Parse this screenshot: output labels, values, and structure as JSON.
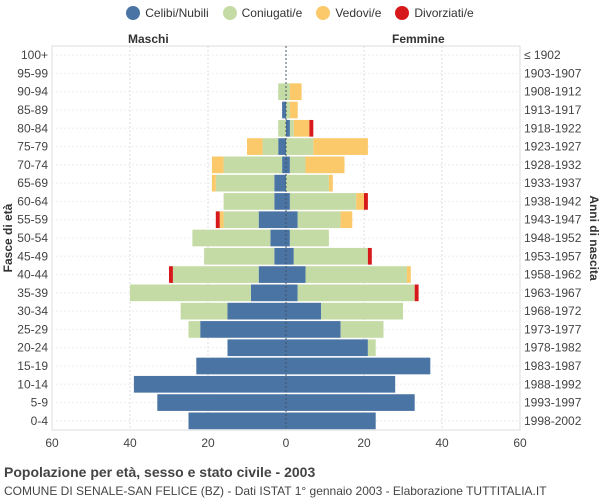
{
  "legend": [
    {
      "label": "Celibi/Nubili",
      "color": "#4a74a4"
    },
    {
      "label": "Coniugati/e",
      "color": "#c5dba5"
    },
    {
      "label": "Vedovi/e",
      "color": "#fbc96a"
    },
    {
      "label": "Divorziati/e",
      "color": "#d7191c"
    }
  ],
  "labels": {
    "male": "Maschi",
    "female": "Femmine"
  },
  "title": "Popolazione per età, sesso e stato civile - 2003",
  "subtitle": "COMUNE DI SENALE-SAN FELICE (BZ) - Dati ISTAT 1° gennaio 2003 - Elaborazione TUTTITALIA.IT",
  "chart_data": {
    "type": "bar",
    "orientation": "horizontal-population-pyramid",
    "xlim": [
      -60,
      60
    ],
    "x_ticks": [
      -60,
      -40,
      -20,
      0,
      20,
      40,
      60
    ],
    "x_tick_labels": [
      "60",
      "40",
      "20",
      "0",
      "20",
      "40",
      "60"
    ],
    "ylabel_left": "Fasce di età",
    "ylabel_right": "Anni di nascita",
    "age_groups": [
      "100+",
      "95-99",
      "90-94",
      "85-89",
      "80-84",
      "75-79",
      "70-74",
      "65-69",
      "60-64",
      "55-59",
      "50-54",
      "45-49",
      "40-44",
      "35-39",
      "30-34",
      "25-29",
      "20-24",
      "15-19",
      "10-14",
      "5-9",
      "0-4"
    ],
    "birth_years": [
      "≤ 1902",
      "1903-1907",
      "1908-1912",
      "1913-1917",
      "1918-1922",
      "1923-1927",
      "1928-1932",
      "1933-1937",
      "1938-1942",
      "1943-1947",
      "1948-1952",
      "1953-1957",
      "1958-1962",
      "1963-1967",
      "1968-1972",
      "1973-1977",
      "1978-1982",
      "1983-1987",
      "1988-1992",
      "1993-1997",
      "1998-2002"
    ],
    "series_order": [
      "Celibi/Nubili",
      "Coniugati/e",
      "Vedovi/e",
      "Divorziati/e"
    ],
    "male": {
      "Celibi/Nubili": [
        0,
        0,
        0,
        1,
        0,
        2,
        1,
        3,
        3,
        7,
        4,
        3,
        7,
        9,
        15,
        22,
        15,
        23,
        39,
        33,
        25
      ],
      "Coniugati/e": [
        0,
        0,
        2,
        0,
        2,
        4,
        15,
        15,
        13,
        9,
        20,
        18,
        22,
        31,
        12,
        3,
        0,
        0,
        0,
        0,
        0
      ],
      "Vedovi/e": [
        0,
        0,
        0,
        0,
        0,
        4,
        3,
        1,
        0,
        1,
        0,
        0,
        0,
        0,
        0,
        0,
        0,
        0,
        0,
        0,
        0
      ],
      "Divorziati/e": [
        0,
        0,
        0,
        0,
        0,
        0,
        0,
        0,
        0,
        1,
        0,
        0,
        1,
        0,
        0,
        0,
        0,
        0,
        0,
        0,
        0
      ]
    },
    "female": {
      "Celibi/Nubili": [
        0,
        0,
        0,
        0,
        1,
        0,
        1,
        0,
        1,
        3,
        1,
        2,
        5,
        3,
        9,
        14,
        21,
        37,
        28,
        33,
        23
      ],
      "Coniugati/e": [
        0,
        0,
        1,
        1,
        1,
        7,
        4,
        11,
        17,
        11,
        10,
        19,
        26,
        30,
        21,
        11,
        2,
        0,
        0,
        0,
        0
      ],
      "Vedovi/e": [
        0,
        0,
        3,
        2,
        4,
        14,
        10,
        1,
        2,
        3,
        0,
        0,
        1,
        0,
        0,
        0,
        0,
        0,
        0,
        0,
        0
      ],
      "Divorziati/e": [
        0,
        0,
        0,
        0,
        1,
        0,
        0,
        0,
        1,
        0,
        0,
        1,
        0,
        1,
        0,
        0,
        0,
        0,
        0,
        0,
        0
      ]
    }
  }
}
